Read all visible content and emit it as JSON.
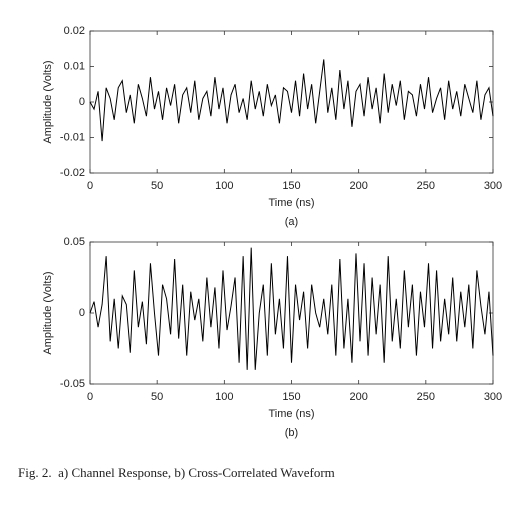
{
  "chart_data": [
    {
      "type": "line",
      "xlabel": "Time (ns)",
      "ylabel": "Amplitude (Volts)",
      "sublabel": "(a)",
      "color": "#000000",
      "xlim": [
        0,
        300
      ],
      "xticks": [
        0,
        50,
        100,
        150,
        200,
        250,
        300
      ],
      "ylim": [
        -0.02,
        0.02
      ],
      "yticks": [
        -0.02,
        -0.01,
        0,
        0.01,
        0.02
      ],
      "x": [
        0,
        3,
        6,
        9,
        12,
        15,
        18,
        21,
        24,
        27,
        30,
        33,
        36,
        39,
        42,
        45,
        48,
        51,
        54,
        57,
        60,
        63,
        66,
        69,
        72,
        75,
        78,
        81,
        84,
        87,
        90,
        93,
        96,
        99,
        102,
        105,
        108,
        111,
        114,
        117,
        120,
        123,
        126,
        129,
        132,
        135,
        138,
        141,
        144,
        147,
        150,
        153,
        156,
        159,
        162,
        165,
        168,
        171,
        174,
        177,
        180,
        183,
        186,
        189,
        192,
        195,
        198,
        201,
        204,
        207,
        210,
        213,
        216,
        219,
        222,
        225,
        228,
        231,
        234,
        237,
        240,
        243,
        246,
        249,
        252,
        255,
        258,
        261,
        264,
        267,
        270,
        273,
        276,
        279,
        282,
        285,
        288,
        291,
        294,
        297,
        300
      ],
      "values": [
        0,
        -0.002,
        0.003,
        -0.011,
        0.004,
        0.001,
        -0.005,
        0.004,
        0.006,
        -0.003,
        0.002,
        -0.006,
        0.005,
        0.001,
        -0.004,
        0.007,
        -0.002,
        0.003,
        -0.005,
        0.004,
        -0.001,
        0.005,
        -0.006,
        0.002,
        0.004,
        -0.003,
        0.006,
        -0.005,
        0.001,
        0.003,
        -0.004,
        0.007,
        -0.002,
        0.004,
        -0.006,
        0.002,
        0.005,
        -0.003,
        0.001,
        -0.005,
        0.006,
        -0.002,
        0.003,
        -0.004,
        0.005,
        -0.001,
        0.002,
        -0.006,
        0.004,
        0.003,
        -0.003,
        0.006,
        -0.004,
        0.008,
        -0.002,
        0.005,
        -0.006,
        0.003,
        0.012,
        -0.003,
        0.004,
        -0.005,
        0.009,
        -0.002,
        0.006,
        -0.007,
        0.003,
        0.005,
        -0.004,
        0.007,
        -0.002,
        0.004,
        -0.006,
        0.008,
        -0.003,
        0.005,
        -0.001,
        0.006,
        -0.005,
        0.003,
        0.002,
        -0.004,
        0.005,
        -0.002,
        0.007,
        -0.003,
        0.001,
        0.004,
        -0.005,
        0.006,
        -0.002,
        0.003,
        -0.004,
        0.005,
        0.001,
        -0.003,
        0.006,
        -0.005,
        0.002,
        0.004,
        -0.004
      ]
    },
    {
      "type": "line",
      "xlabel": "Time (ns)",
      "ylabel": "Amplitude (Volts)",
      "sublabel": "(b)",
      "color": "#000000",
      "xlim": [
        0,
        300
      ],
      "xticks": [
        0,
        50,
        100,
        150,
        200,
        250,
        300
      ],
      "ylim": [
        -0.05,
        0.05
      ],
      "yticks": [
        -0.05,
        0,
        0.05
      ],
      "x": [
        0,
        3,
        6,
        9,
        12,
        15,
        18,
        21,
        24,
        27,
        30,
        33,
        36,
        39,
        42,
        45,
        48,
        51,
        54,
        57,
        60,
        63,
        66,
        69,
        72,
        75,
        78,
        81,
        84,
        87,
        90,
        93,
        96,
        99,
        102,
        105,
        108,
        111,
        114,
        117,
        120,
        123,
        126,
        129,
        132,
        135,
        138,
        141,
        144,
        147,
        150,
        153,
        156,
        159,
        162,
        165,
        168,
        171,
        174,
        177,
        180,
        183,
        186,
        189,
        192,
        195,
        198,
        201,
        204,
        207,
        210,
        213,
        216,
        219,
        222,
        225,
        228,
        231,
        234,
        237,
        240,
        243,
        246,
        249,
        252,
        255,
        258,
        261,
        264,
        267,
        270,
        273,
        276,
        279,
        282,
        285,
        288,
        291,
        294,
        297,
        300
      ],
      "values": [
        0.0,
        0.008,
        -0.01,
        0.006,
        0.04,
        -0.02,
        0.01,
        -0.025,
        0.012,
        0.006,
        -0.028,
        0.03,
        -0.01,
        0.008,
        -0.022,
        0.035,
        0.0,
        -0.03,
        0.02,
        0.01,
        -0.015,
        0.038,
        -0.018,
        0.02,
        -0.03,
        0.015,
        -0.005,
        0.01,
        -0.02,
        0.025,
        -0.01,
        0.018,
        -0.025,
        0.03,
        -0.012,
        0.005,
        0.025,
        -0.035,
        0.04,
        -0.04,
        0.046,
        -0.04,
        0.0,
        0.02,
        -0.03,
        0.035,
        -0.015,
        0.01,
        -0.025,
        0.04,
        -0.035,
        0.02,
        -0.005,
        0.015,
        -0.025,
        0.02,
        0.0,
        -0.01,
        0.01,
        -0.015,
        0.02,
        -0.03,
        0.038,
        -0.025,
        0.01,
        -0.035,
        0.042,
        -0.02,
        0.035,
        -0.03,
        0.025,
        -0.015,
        0.02,
        -0.035,
        0.04,
        -0.02,
        0.01,
        -0.025,
        0.03,
        -0.01,
        0.02,
        -0.03,
        0.015,
        -0.01,
        0.035,
        -0.025,
        0.03,
        -0.02,
        0.01,
        -0.015,
        0.025,
        -0.02,
        0.015,
        -0.01,
        0.02,
        -0.025,
        0.03,
        0.005,
        -0.015,
        0.015,
        -0.03
      ]
    }
  ],
  "caption": "Fig. 2.  a) Channel Response, b) Cross-Correlated Waveform"
}
